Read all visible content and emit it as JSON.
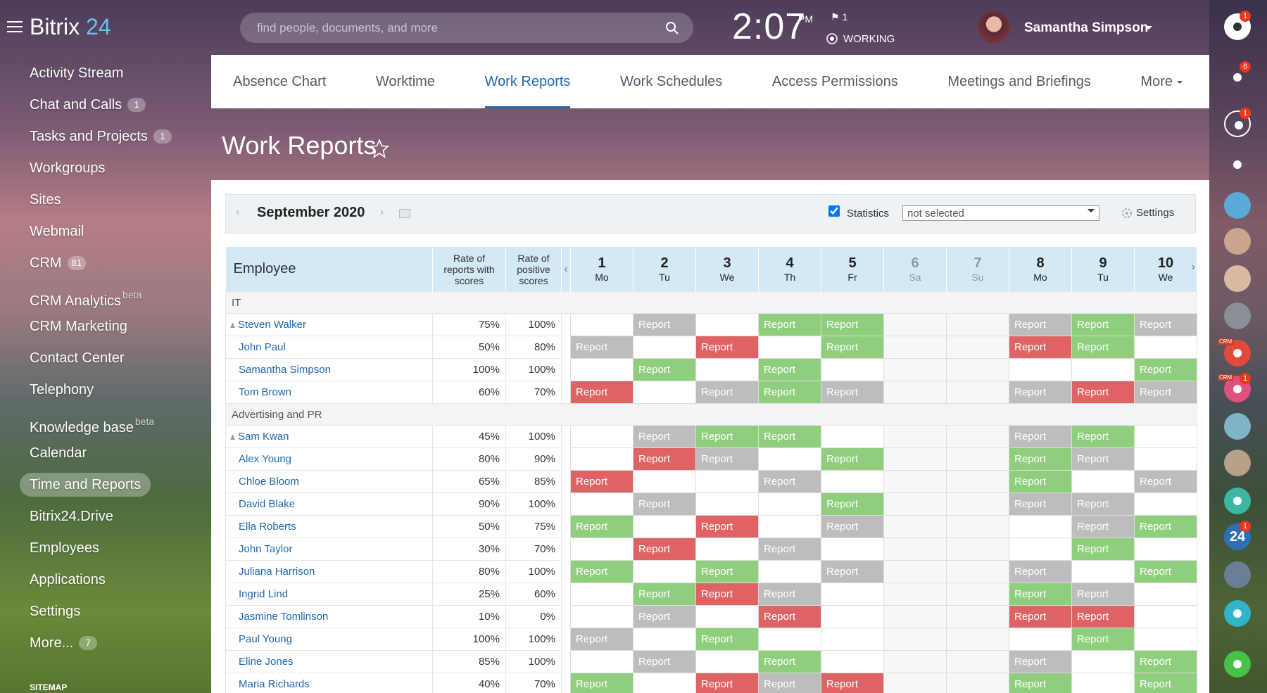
{
  "header": {
    "logo_main": "Bitrix",
    "logo_accent": "24",
    "search_placeholder": "find people, documents, and more",
    "time": "2:07",
    "time_suffix": "PM",
    "flag_count": 1,
    "status": "WORKING",
    "user_name": "Samantha Simpson"
  },
  "sidebar": {
    "items": [
      {
        "label": "Activity Stream"
      },
      {
        "label": "Chat and Calls",
        "counter": 1
      },
      {
        "label": "Tasks and Projects",
        "counter": 1
      },
      {
        "label": "Workgroups"
      },
      {
        "label": "Sites"
      },
      {
        "label": "Webmail"
      },
      {
        "label": "CRM",
        "counter": 81
      },
      {
        "label": "CRM Analytics",
        "sup": "beta"
      },
      {
        "label": "CRM Marketing"
      },
      {
        "label": "Contact Center"
      },
      {
        "label": "Telephony"
      },
      {
        "label": "Knowledge base",
        "sup": "beta"
      },
      {
        "label": "Calendar"
      },
      {
        "label": "Time and Reports",
        "active": true
      },
      {
        "label": "Bitrix24.Drive"
      },
      {
        "label": "Employees"
      },
      {
        "label": "Applications"
      },
      {
        "label": "Settings"
      },
      {
        "label": "More...",
        "counter": 7
      }
    ],
    "sitemap": "SITEMAP"
  },
  "tabs": {
    "items": [
      "Absence Chart",
      "Worktime",
      "Work Reports",
      "Work Schedules",
      "Access Permissions",
      "Meetings and Briefings",
      "More"
    ],
    "active": 2
  },
  "page_title": "Work Reports",
  "toolbar": {
    "period": "September 2020",
    "statistics_label": "Statistics",
    "statistics_checked": true,
    "filter": "not selected",
    "settings": "Settings"
  },
  "table": {
    "columns": {
      "employee": "Employee",
      "rate_reports": "Rate of reports with scores",
      "rate_positive": "Rate of positive scores"
    },
    "days": [
      {
        "day": 1,
        "weekday": "Mo"
      },
      {
        "day": 2,
        "weekday": "Tu"
      },
      {
        "day": 3,
        "weekday": "We"
      },
      {
        "day": 4,
        "weekday": "Th"
      },
      {
        "day": 5,
        "weekday": "Fr"
      },
      {
        "day": 6,
        "weekday": "Sa",
        "weekend": true
      },
      {
        "day": 7,
        "weekday": "Su",
        "weekend": true
      },
      {
        "day": 8,
        "weekday": "Mo"
      },
      {
        "day": 9,
        "weekday": "Tu"
      },
      {
        "day": 10,
        "weekday": "We"
      }
    ],
    "cell_text": "Report",
    "groups": [
      {
        "name": "IT",
        "rows": [
          {
            "name": "Steven Walker",
            "head": true,
            "rate_reports": "75%",
            "rate_positive": "100%",
            "cells": [
              null,
              "gray",
              null,
              "green",
              "green",
              null,
              null,
              "gray",
              "green",
              "gray"
            ]
          },
          {
            "name": "John Paul",
            "rate_reports": "50%",
            "rate_positive": "80%",
            "cells": [
              "gray",
              null,
              "red",
              null,
              "green",
              null,
              null,
              "red",
              "green",
              null
            ]
          },
          {
            "name": "Samantha Simpson",
            "rate_reports": "100%",
            "rate_positive": "100%",
            "cells": [
              null,
              "green",
              null,
              "green",
              null,
              null,
              null,
              null,
              null,
              "green"
            ]
          },
          {
            "name": "Tom Brown",
            "rate_reports": "60%",
            "rate_positive": "70%",
            "cells": [
              "red",
              null,
              "gray",
              "green",
              "gray",
              null,
              null,
              "gray",
              "red",
              "gray"
            ]
          }
        ]
      },
      {
        "name": "Advertising and PR",
        "rows": [
          {
            "name": "Sam Kwan",
            "head": true,
            "rate_reports": "45%",
            "rate_positive": "100%",
            "cells": [
              null,
              "gray",
              "green",
              "green",
              null,
              null,
              null,
              "gray",
              "green",
              null
            ]
          },
          {
            "name": "Alex Young",
            "rate_reports": "80%",
            "rate_positive": "90%",
            "cells": [
              null,
              "red",
              "gray",
              null,
              "green",
              null,
              null,
              "green",
              "gray",
              null
            ]
          },
          {
            "name": "Chloe Bloom",
            "rate_reports": "65%",
            "rate_positive": "85%",
            "cells": [
              "red",
              null,
              null,
              "gray",
              null,
              null,
              null,
              "green",
              null,
              "gray"
            ]
          },
          {
            "name": "David Blake",
            "rate_reports": "90%",
            "rate_positive": "100%",
            "cells": [
              null,
              "gray",
              null,
              null,
              "green",
              null,
              null,
              "gray",
              "gray",
              null
            ]
          },
          {
            "name": "Ella Roberts",
            "rate_reports": "50%",
            "rate_positive": "75%",
            "cells": [
              "green",
              null,
              "red",
              null,
              "gray",
              null,
              null,
              null,
              "gray",
              "green"
            ]
          },
          {
            "name": "John Taylor",
            "rate_reports": "30%",
            "rate_positive": "70%",
            "cells": [
              null,
              "red",
              null,
              "gray",
              null,
              null,
              null,
              null,
              "green",
              null
            ]
          },
          {
            "name": "Juliana Harrison",
            "rate_reports": "80%",
            "rate_positive": "100%",
            "cells": [
              "green",
              null,
              "green",
              null,
              "gray",
              null,
              null,
              "gray",
              null,
              "green"
            ]
          },
          {
            "name": "Ingrid Lind",
            "rate_reports": "25%",
            "rate_positive": "60%",
            "cells": [
              null,
              "green",
              "red",
              "gray",
              null,
              null,
              null,
              "green",
              "gray",
              null
            ]
          },
          {
            "name": "Jasmine Tomlinson",
            "rate_reports": "10%",
            "rate_positive": "0%",
            "cells": [
              null,
              "gray",
              null,
              "red",
              null,
              null,
              null,
              "red",
              "red",
              null
            ]
          },
          {
            "name": "Paul Young",
            "rate_reports": "100%",
            "rate_positive": "100%",
            "cells": [
              "gray",
              null,
              "green",
              null,
              null,
              null,
              null,
              null,
              "green",
              null
            ]
          },
          {
            "name": "Eline Jones",
            "rate_reports": "85%",
            "rate_positive": "100%",
            "cells": [
              null,
              "gray",
              null,
              "green",
              null,
              null,
              null,
              "gray",
              null,
              "green"
            ]
          },
          {
            "name": "Maria Richards",
            "rate_reports": "40%",
            "rate_positive": "70%",
            "cells": [
              "green",
              null,
              "red",
              "gray",
              "red",
              null,
              null,
              "green",
              null,
              "green"
            ]
          }
        ]
      }
    ]
  },
  "right_bar": {
    "help_counter": 1,
    "notifications_counter": 6,
    "chat_counter": 1,
    "crm_badge": "CRM",
    "crm_counter": 1,
    "b24_icon": "24",
    "b24_counter": 1
  }
}
